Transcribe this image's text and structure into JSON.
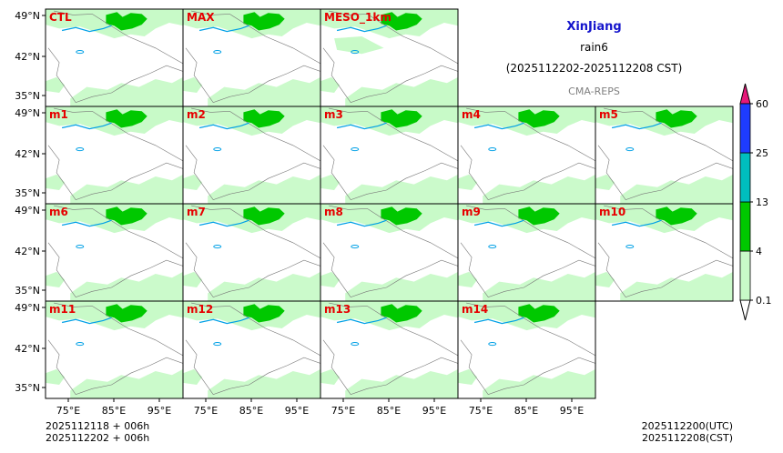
{
  "header": {
    "title": "XinJiang",
    "variable": "rain6",
    "period": "(2025112202-2025112208 CST)",
    "source": "CMA-REPS"
  },
  "footer": {
    "left_line1": "2025112118  +  006h",
    "left_line2": "2025112202  +  006h",
    "right_line1": "2025112200(UTC)",
    "right_line2": "2025112208(CST)"
  },
  "chart_data": {
    "type": "heatmap",
    "title": "XinJiang rain6 (2025112202-2025112208 CST)",
    "layout_rows": [
      [
        "CTL",
        "MAX",
        "MESO_1km"
      ],
      [
        "m1",
        "m2",
        "m3",
        "m4",
        "m5"
      ],
      [
        "m6",
        "m7",
        "m8",
        "m9",
        "m10"
      ],
      [
        "m11",
        "m12",
        "m13",
        "m14"
      ]
    ],
    "x_ticks": [
      "75°E",
      "85°E",
      "95°E"
    ],
    "y_ticks": [
      "49°N",
      "42°N",
      "35°N"
    ],
    "colorbar": {
      "levels": [
        "0.1",
        "4",
        "13",
        "25",
        "60"
      ],
      "colors": [
        "#c8fac8",
        "#00c800",
        "#00bebe",
        "#1e3cff"
      ],
      "over_color": "#e6197a",
      "under_color": "#ffffff"
    }
  }
}
